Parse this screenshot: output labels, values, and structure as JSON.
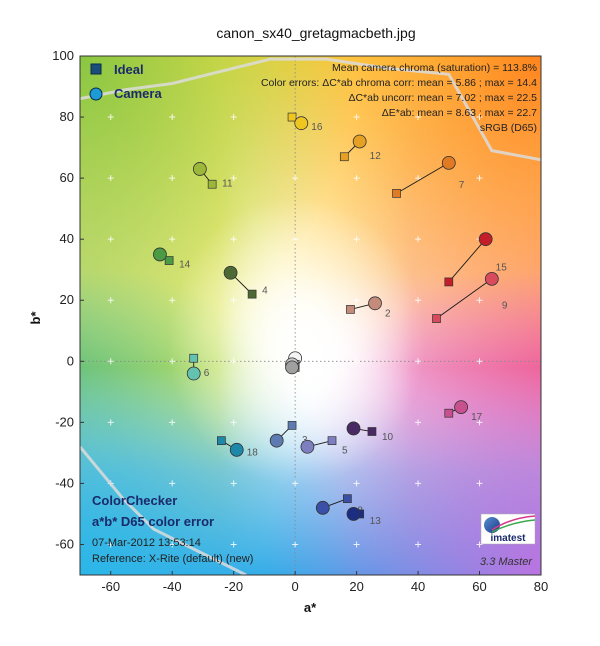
{
  "header": {
    "title": "canon_sx40_gretagmacbeth.jpg"
  },
  "info_lines": [
    "Mean camera chroma (saturation) = 113.8%",
    "Color errors: ΔC*ab chroma corr:  mean = 5.86 ;  max = 14.4",
    "ΔC*ab uncorr:  mean = 7.02 ;  max = 22.5",
    "ΔE*ab:  mean = 8.63 ;  max = 22.7",
    "sRGB (D65)"
  ],
  "legend": {
    "ideal": "Ideal",
    "camera": "Camera"
  },
  "footer": {
    "title1": "ColorChecker",
    "title2": "a*b* D65 color error",
    "date": "07-Mar-2012 13:53:14",
    "reference": "Reference: X-Rite (default) (new)",
    "version": "3.3  Master",
    "logo_text": "imatest"
  },
  "chart_data": {
    "type": "scatter",
    "xlabel": "a*",
    "ylabel": "b*",
    "xlim": [
      -70,
      80
    ],
    "ylim": [
      -70,
      100
    ],
    "xticks": [
      -60,
      -40,
      -20,
      0,
      20,
      40,
      60,
      80
    ],
    "yticks": [
      -60,
      -40,
      -20,
      0,
      20,
      40,
      60,
      80,
      100
    ],
    "grid": "dotted crosses",
    "legend_position": "top-left",
    "series": [
      {
        "name": "Ideal",
        "marker": "square"
      },
      {
        "name": "Camera",
        "marker": "circle"
      }
    ],
    "patches": [
      {
        "label": "2",
        "ideal": [
          18,
          17
        ],
        "camera": [
          26,
          19
        ],
        "color": "#c48a7a"
      },
      {
        "label": "3",
        "ideal": [
          -1,
          -21
        ],
        "camera": [
          -6,
          -26
        ],
        "color": "#5d7bb0"
      },
      {
        "label": "4",
        "ideal": [
          -14,
          22
        ],
        "camera": [
          -21,
          29
        ],
        "color": "#4d6a35"
      },
      {
        "label": "5",
        "ideal": [
          12,
          -26
        ],
        "camera": [
          4,
          -28
        ],
        "color": "#7d7fc0"
      },
      {
        "label": "6",
        "ideal": [
          -33,
          1
        ],
        "camera": [
          -33,
          -4
        ],
        "color": "#63c2b0"
      },
      {
        "label": "7",
        "ideal": [
          33,
          55
        ],
        "camera": [
          50,
          65
        ],
        "color": "#e07a23"
      },
      {
        "label": "8",
        "ideal": [
          17,
          -45
        ],
        "camera": [
          9,
          -48
        ],
        "color": "#3a4fa6"
      },
      {
        "label": "9",
        "ideal": [
          46,
          14
        ],
        "camera": [
          64,
          27
        ],
        "color": "#d84a5c"
      },
      {
        "label": "10",
        "ideal": [
          25,
          -23
        ],
        "camera": [
          19,
          -22
        ],
        "color": "#4a2a64"
      },
      {
        "label": "11",
        "ideal": [
          -27,
          58
        ],
        "camera": [
          -31,
          63
        ],
        "color": "#9bb83a"
      },
      {
        "label": "12",
        "ideal": [
          16,
          67
        ],
        "camera": [
          21,
          72
        ],
        "color": "#e6a124"
      },
      {
        "label": "13",
        "ideal": [
          21,
          -50
        ],
        "camera": [
          19,
          -50
        ],
        "color": "#1c2e84"
      },
      {
        "label": "14",
        "ideal": [
          -41,
          33
        ],
        "camera": [
          -44,
          35
        ],
        "color": "#4b9b45"
      },
      {
        "label": "15",
        "ideal": [
          50,
          26
        ],
        "camera": [
          62,
          40
        ],
        "color": "#c41e2a"
      },
      {
        "label": "16",
        "ideal": [
          -1,
          80
        ],
        "camera": [
          2,
          78
        ],
        "color": "#eec61f"
      },
      {
        "label": "17",
        "ideal": [
          50,
          -17
        ],
        "camera": [
          54,
          -15
        ],
        "color": "#c8508e"
      },
      {
        "label": "18",
        "ideal": [
          -24,
          -26
        ],
        "camera": [
          -19,
          -29
        ],
        "color": "#1d88aa"
      },
      {
        "label": "",
        "ideal": [
          0,
          0
        ],
        "camera": [
          0,
          1
        ],
        "color": "#f4f4f4"
      },
      {
        "label": "",
        "ideal": [
          0,
          -1
        ],
        "camera": [
          -1,
          -1
        ],
        "color": "#c8c8c8"
      },
      {
        "label": "",
        "ideal": [
          0,
          -2
        ],
        "camera": [
          -1,
          -2
        ],
        "color": "#a0a0a0"
      }
    ],
    "gamut_boundary": [
      [
        -70,
        86
      ],
      [
        -55,
        89
      ],
      [
        -40,
        91
      ],
      [
        -20,
        96
      ],
      [
        -8,
        99
      ],
      [
        10,
        99
      ],
      [
        30,
        96
      ],
      [
        50,
        94
      ],
      [
        64,
        69
      ],
      [
        80,
        66
      ]
    ],
    "lower_boundary": [
      [
        -70,
        -28
      ],
      [
        -56,
        -45
      ],
      [
        -46,
        -55
      ],
      [
        -30,
        -63
      ],
      [
        -16,
        -70
      ]
    ]
  }
}
